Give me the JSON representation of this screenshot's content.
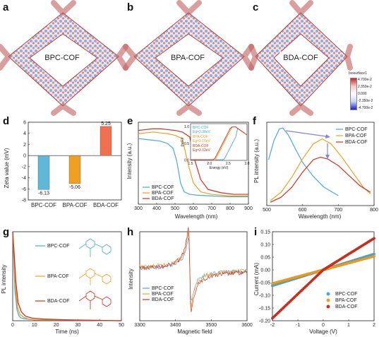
{
  "panels": {
    "a": {
      "letter": "a",
      "label": "BPC-COF"
    },
    "b": {
      "letter": "b",
      "label": "BPA-COF"
    },
    "c": {
      "letter": "c",
      "label": "BDA-COF"
    }
  },
  "colorbar": {
    "title": "Isosurface1",
    "ticks": [
      "4.700e-2",
      "2.350e-2",
      "0.000",
      "-2.350e-2",
      "-4.700e-2"
    ],
    "colors": [
      "#c62828",
      "#f2c9c9",
      "#ffffff",
      "#c9d2f5",
      "#1a1fd1"
    ]
  },
  "letters": {
    "d": "d",
    "e": "e",
    "f": "f",
    "g": "g",
    "h": "h",
    "i": "i"
  },
  "chart_data": [
    {
      "id": "d",
      "type": "bar",
      "categories": [
        "BPC-COF",
        "BPA-COF",
        "BDA-COF"
      ],
      "values": [
        -6.13,
        -5.06,
        5.25
      ],
      "value_labels": [
        "-6.13",
        "-5.06",
        "5.25"
      ],
      "ylabel": "Zeta value (mV)",
      "ylim": [
        -8,
        6
      ],
      "yticks": [
        "6",
        "4",
        "2",
        "0",
        "-2",
        "-4",
        "-6",
        "-8"
      ],
      "colors": [
        "#5fb8d8",
        "#f0a020",
        "#f07050"
      ]
    },
    {
      "id": "e",
      "type": "line",
      "xlabel": "Wavelength (nm)",
      "ylabel": "Intensity (a.u.)",
      "xlim": [
        300,
        900
      ],
      "xticks": [
        "300",
        "400",
        "500",
        "600",
        "700",
        "800",
        "900"
      ],
      "series": [
        {
          "name": "BPC-COF",
          "color": "#4aa8e0",
          "x": [
            300,
            340,
            380,
            420,
            460,
            490,
            510,
            530,
            550,
            580,
            620,
            700,
            800,
            900
          ],
          "y": [
            0.8,
            0.79,
            0.78,
            0.77,
            0.74,
            0.68,
            0.52,
            0.26,
            0.15,
            0.12,
            0.11,
            0.1,
            0.09,
            0.09
          ]
        },
        {
          "name": "BPA-COF",
          "color": "#f0a020",
          "x": [
            300,
            340,
            380,
            420,
            460,
            500,
            540,
            570,
            600,
            640,
            700,
            800,
            900
          ],
          "y": [
            0.86,
            0.87,
            0.88,
            0.87,
            0.86,
            0.84,
            0.8,
            0.5,
            0.26,
            0.15,
            0.12,
            0.1,
            0.1
          ]
        },
        {
          "name": "BDA-COF",
          "color": "#d03020",
          "x": [
            300,
            340,
            380,
            420,
            460,
            500,
            540,
            580,
            610,
            640,
            680,
            750,
            820,
            900
          ],
          "y": [
            0.9,
            0.91,
            0.92,
            0.92,
            0.91,
            0.9,
            0.88,
            0.82,
            0.52,
            0.3,
            0.18,
            0.14,
            0.12,
            0.12
          ]
        }
      ],
      "inset": {
        "xlabel": "Energy (eV)",
        "ylabel": "(hνF)²",
        "xticks": [
          "1.5",
          "2.0",
          "2.5",
          "3.0"
        ],
        "yticks": [
          "0.0",
          "0.5",
          "1.0"
        ],
        "notes": [
          {
            "name": "BPC-COF",
            "gap": "Eg=2.38eV",
            "color": "#4aa8e0"
          },
          {
            "name": "BPA-COF",
            "gap": "Eg=2.15eV",
            "color": "#f0a020"
          },
          {
            "name": "BDA-COF",
            "gap": "Eg=2.12eV",
            "color": "#d03020"
          }
        ]
      }
    },
    {
      "id": "f",
      "type": "line",
      "xlabel": "Wavelength (nm)",
      "ylabel": "PL intensity (a.u.)",
      "xlim": [
        500,
        800
      ],
      "xticks": [
        "500",
        "600",
        "700",
        "800"
      ],
      "series": [
        {
          "name": "BPC-COF",
          "color": "#4aa8e0",
          "x": [
            505,
            520,
            535,
            545,
            560,
            580,
            600,
            630,
            660,
            700
          ],
          "y": [
            0.55,
            0.78,
            0.92,
            0.93,
            0.85,
            0.68,
            0.52,
            0.35,
            0.22,
            0.12
          ]
        },
        {
          "name": "BPA-COF",
          "color": "#f0a020",
          "x": [
            510,
            540,
            570,
            600,
            630,
            655,
            680,
            710,
            740,
            770,
            790
          ],
          "y": [
            0.06,
            0.16,
            0.34,
            0.56,
            0.74,
            0.8,
            0.74,
            0.58,
            0.4,
            0.22,
            0.14
          ]
        },
        {
          "name": "BDA-COF",
          "color": "#d03020",
          "x": [
            510,
            540,
            570,
            600,
            630,
            650,
            670,
            700,
            730,
            760,
            790
          ],
          "y": [
            0.04,
            0.1,
            0.22,
            0.4,
            0.55,
            0.58,
            0.56,
            0.48,
            0.36,
            0.24,
            0.16
          ]
        }
      ]
    },
    {
      "id": "g",
      "type": "line",
      "xlabel": "Time (ns)",
      "ylabel": "PL intensity",
      "xlim": [
        0,
        50
      ],
      "xticks": [
        "0",
        "10",
        "20",
        "30",
        "40",
        "50"
      ],
      "series": [
        {
          "name": "BPC-COF",
          "color": "#4aa8e0",
          "x": [
            0,
            0.5,
            1,
            2,
            3,
            4,
            6,
            10,
            20,
            50
          ],
          "y": [
            1,
            0.7,
            0.35,
            0.12,
            0.05,
            0.03,
            0.02,
            0.01,
            0.01,
            0.0
          ]
        },
        {
          "name": "BPA-COF",
          "color": "#f0a020",
          "x": [
            0,
            0.6,
            1.2,
            2.2,
            3.4,
            5,
            7,
            11,
            20,
            50
          ],
          "y": [
            1,
            0.72,
            0.4,
            0.15,
            0.07,
            0.04,
            0.02,
            0.01,
            0.01,
            0.0
          ]
        },
        {
          "name": "BDA-COF",
          "color": "#d03020",
          "x": [
            0,
            0.7,
            1.4,
            2.5,
            4,
            6,
            9,
            14,
            25,
            50
          ],
          "y": [
            1,
            0.75,
            0.45,
            0.2,
            0.1,
            0.05,
            0.03,
            0.02,
            0.01,
            0.0
          ]
        }
      ]
    },
    {
      "id": "h",
      "type": "line",
      "xlabel": "Magnetic field",
      "ylabel": "Intensity",
      "xlim": [
        3300,
        3600
      ],
      "xticks": [
        "3300",
        "3400",
        "3500",
        "3600"
      ],
      "series": [
        {
          "name": "BPC-COF",
          "color": "#4aa8e0"
        },
        {
          "name": "BPA-COF",
          "color": "#f0a020"
        },
        {
          "name": "BDA-COF",
          "color": "#d03020"
        }
      ]
    },
    {
      "id": "i",
      "type": "scatter",
      "xlabel": "Voltage (V)",
      "ylabel": "Current (mA)",
      "xlim": [
        -2,
        2
      ],
      "ylim": [
        -0.2,
        0.15
      ],
      "xticks": [
        "-2",
        "-1",
        "0",
        "1",
        "2"
      ],
      "yticks": [
        "0.15",
        "0.10",
        "0.05",
        "0.00",
        "-0.05",
        "-0.10",
        "-0.15",
        "-0.20"
      ],
      "series": [
        {
          "name": "BPC-COF",
          "color": "#4aa8e0",
          "slope": 0.031
        },
        {
          "name": "BPA-COF",
          "color": "#f0a020",
          "slope": 0.027
        },
        {
          "name": "BDA-COF",
          "color": "#d03020",
          "slope": 0.064
        }
      ]
    }
  ]
}
